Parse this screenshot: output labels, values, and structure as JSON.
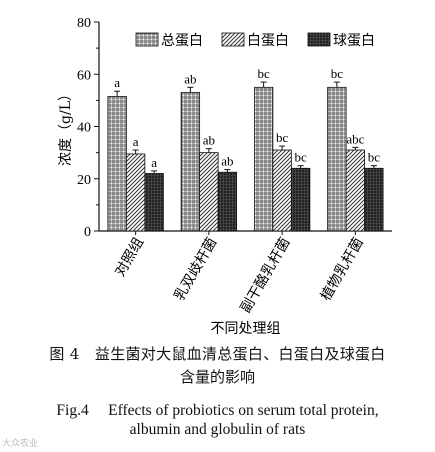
{
  "chart_data": {
    "type": "bar",
    "categories": [
      "对照组",
      "乳双歧杆菌",
      "副干酪乳杆菌",
      "植物乳杆菌"
    ],
    "series": [
      {
        "name": "总蛋白",
        "values": [
          51.5,
          53.0,
          55.0,
          55.0
        ],
        "errors": [
          2.0,
          2.0,
          2.0,
          2.0
        ],
        "letters": [
          "a",
          "ab",
          "bc",
          "bc"
        ],
        "pattern": "grid",
        "color": "#555555"
      },
      {
        "name": "白蛋白",
        "values": [
          29.5,
          30.0,
          31.0,
          31.0
        ],
        "errors": [
          1.5,
          1.5,
          1.5,
          1.0
        ],
        "letters": [
          "a",
          "ab",
          "bc",
          "abc"
        ],
        "pattern": "hatch",
        "color": "#777777"
      },
      {
        "name": "球蛋白",
        "values": [
          22.0,
          22.5,
          24.0,
          24.0
        ],
        "errors": [
          1.0,
          1.0,
          1.0,
          1.0
        ],
        "letters": [
          "a",
          "ab",
          "bc",
          "bc"
        ],
        "pattern": "dense",
        "color": "#222222"
      }
    ],
    "xlabel": "不同处理组",
    "ylabel": "浓度（g/L）",
    "ylim": [
      0,
      80
    ],
    "yticks": [
      0,
      20,
      40,
      60,
      80
    ],
    "grid": false,
    "legend": "top"
  },
  "caption": {
    "zh_line1": "图 4　益生菌对大鼠血清总蛋白、白蛋白及球蛋白",
    "zh_line2": "含量的影响",
    "en_line1": "Fig.4　 Effects of probiotics on serum total protein,",
    "en_line2": "albumin and globulin of rats"
  },
  "watermark": "大众农业"
}
